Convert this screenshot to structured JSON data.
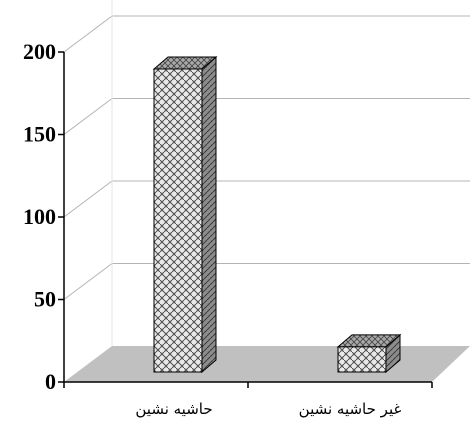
{
  "chart_data": {
    "type": "bar",
    "categories": [
      "حاشیه نشین",
      "غیر حاشیه نشین"
    ],
    "values": [
      193,
      16
    ],
    "ylim": [
      0,
      200
    ],
    "yticks": [
      0,
      50,
      100,
      150,
      200
    ],
    "grid": true,
    "three_d": true,
    "colors": {
      "floor": "#c0c0c0",
      "bar_front": "#e9e9e9",
      "bar_pattern": "#505050",
      "bar_side": "#8c8c8c",
      "bar_top": "#a8a8a8",
      "gridline": "#b4b4b4",
      "axis": "#000000"
    }
  }
}
